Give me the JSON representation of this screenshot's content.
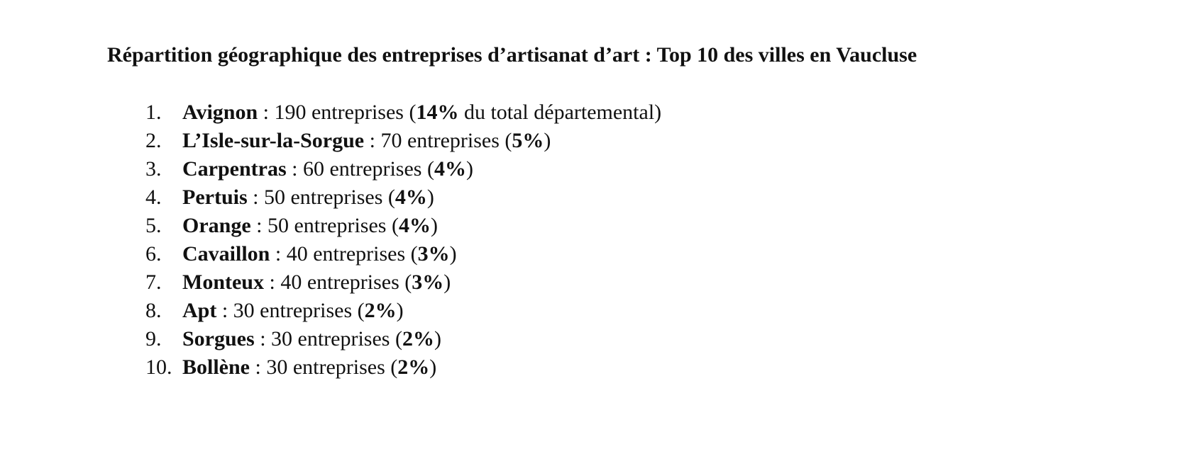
{
  "document": {
    "title": "Répartition géographique des entreprises d’artisanat d’art : Top 10 des villes en Vaucluse",
    "items": [
      {
        "number": "1.",
        "city": "Avignon",
        "count_text": " : 190 entreprises (",
        "percent": "14%",
        "suffix": " du total départemental)"
      },
      {
        "number": "2.",
        "city": "L’Isle-sur-la-Sorgue",
        "count_text": " : 70 entreprises (",
        "percent": "5%",
        "suffix": ")"
      },
      {
        "number": "3.",
        "city": "Carpentras",
        "count_text": " : 60 entreprises (",
        "percent": "4%",
        "suffix": ")"
      },
      {
        "number": "4.",
        "city": "Pertuis",
        "count_text": " : 50 entreprises (",
        "percent": "4%",
        "suffix": ")"
      },
      {
        "number": "5.",
        "city": "Orange",
        "count_text": " : 50 entreprises (",
        "percent": "4%",
        "suffix": ")"
      },
      {
        "number": "6.",
        "city": "Cavaillon",
        "count_text": " : 40 entreprises (",
        "percent": "3%",
        "suffix": ")"
      },
      {
        "number": "7.",
        "city": "Monteux",
        "count_text": " : 40 entreprises (",
        "percent": "3%",
        "suffix": ")"
      },
      {
        "number": "8.",
        "city": "Apt",
        "count_text": " : 30 entreprises (",
        "percent": "2%",
        "suffix": ")"
      },
      {
        "number": "9.",
        "city": "Sorgues",
        "count_text": " : 30 entreprises (",
        "percent": "2%",
        "suffix": ")"
      },
      {
        "number": "10.",
        "city": "Bollène",
        "count_text": " : 30 entreprises (",
        "percent": "2%",
        "suffix": ")"
      }
    ]
  }
}
